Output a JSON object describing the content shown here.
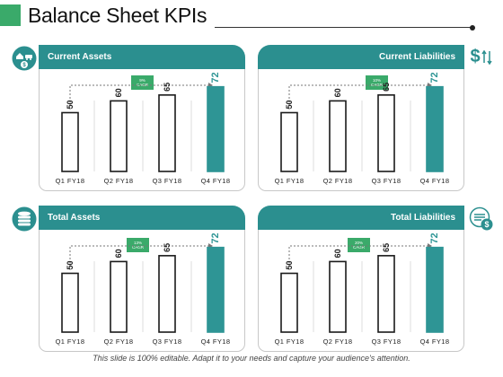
{
  "title": "Balance Sheet KPIs",
  "footer": "This slide is 100% editable. Adapt it to your needs and capture your audience's attention.",
  "colors": {
    "accent": "#2b8f8f",
    "highlight_bar": "#2e9595",
    "cagr_badge": "#3aaa6a"
  },
  "icons": {
    "current_assets": "house-car-money-icon",
    "current_liabilities": "dollar-arrows-icon",
    "total_assets": "coin-stack-icon",
    "total_liabilities": "dollar-list-icon"
  },
  "chart_data": [
    {
      "type": "bar",
      "title": "Current Assets",
      "cagr_value": "9%",
      "cagr_label": "CAGR",
      "categories": [
        "Q1 FY18",
        "Q2 FY18",
        "Q3 FY18",
        "Q4 FY18"
      ],
      "values": [
        50,
        60,
        65,
        72
      ],
      "highlight_index": 3,
      "ylim": [
        0,
        100
      ]
    },
    {
      "type": "bar",
      "title": "Current Liabilities",
      "cagr_value": "10%",
      "cagr_label": "CAGR",
      "categories": [
        "Q1 FY18",
        "Q2 FY18",
        "Q3 FY18",
        "Q4 FY18"
      ],
      "values": [
        50,
        60,
        65,
        72
      ],
      "highlight_index": 3,
      "ylim": [
        0,
        100
      ]
    },
    {
      "type": "bar",
      "title": "Total Assets",
      "cagr_value": "13%",
      "cagr_label": "CAGR",
      "categories": [
        "Q1 FY18",
        "Q2 FY18",
        "Q3 FY18",
        "Q4 FY18"
      ],
      "values": [
        50,
        60,
        65,
        72
      ],
      "highlight_index": 3,
      "ylim": [
        0,
        100
      ]
    },
    {
      "type": "bar",
      "title": "Total Liabilities",
      "cagr_value": "20%",
      "cagr_label": "CAGR",
      "categories": [
        "Q1 FY18",
        "Q2 FY18",
        "Q3 FY18",
        "Q4 FY18"
      ],
      "values": [
        50,
        60,
        65,
        72
      ],
      "highlight_index": 3,
      "ylim": [
        0,
        100
      ]
    }
  ]
}
